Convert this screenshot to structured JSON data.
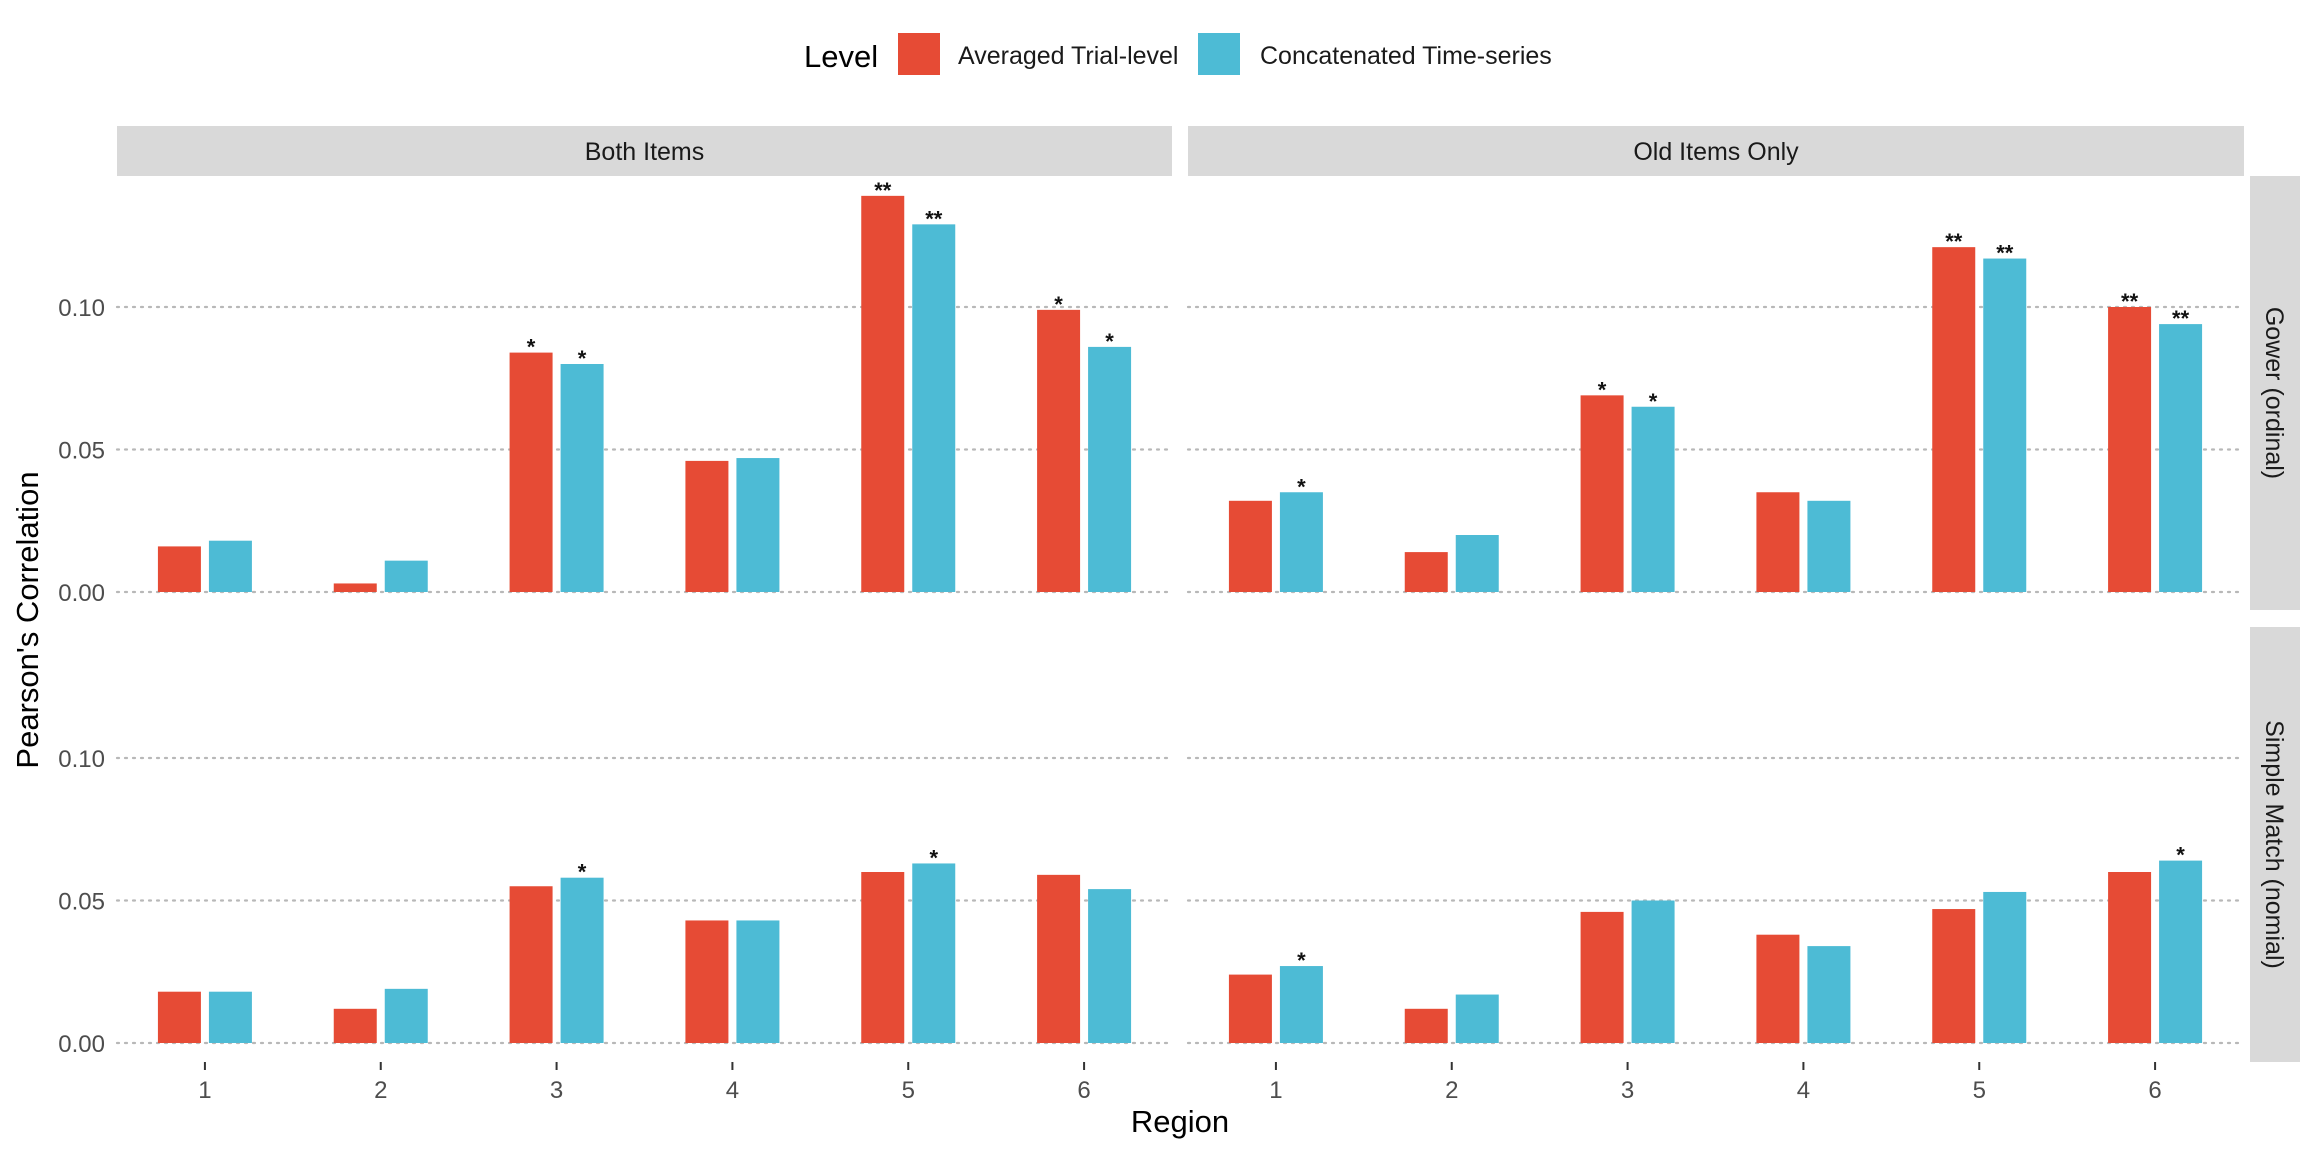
{
  "chart_data": {
    "type": "bar",
    "legend": {
      "title": "Level",
      "placement": "top",
      "entries": [
        "Averaged Trial-level",
        "Concatenated Time-series"
      ]
    },
    "colors": {
      "Averaged Trial-level": "#E64B35",
      "Concatenated Time-series": "#4DBBD5"
    },
    "xlabel": "Region",
    "ylabel": "Pearson's Correlation",
    "categories": [
      "1",
      "2",
      "3",
      "4",
      "5",
      "6"
    ],
    "yticks": [
      0.0,
      0.05,
      0.1
    ],
    "ytick_labels": [
      "0.00",
      "0.05",
      "0.10"
    ],
    "ylim": [
      0,
      0.14
    ],
    "grid": "horizontal dotted",
    "column_facets": [
      "Both Items",
      "Old Items Only"
    ],
    "row_facets": [
      "Gower (ordinal)",
      "Simple Match (nomial)"
    ],
    "panels": [
      {
        "column": "Both Items",
        "row": "Gower (ordinal)",
        "series": [
          {
            "name": "Averaged Trial-level",
            "values": [
              0.016,
              0.003,
              0.084,
              0.046,
              0.139,
              0.099
            ],
            "sig": [
              "",
              "",
              "*",
              "",
              "**",
              "*"
            ]
          },
          {
            "name": "Concatenated Time-series",
            "values": [
              0.018,
              0.011,
              0.08,
              0.047,
              0.129,
              0.086
            ],
            "sig": [
              "",
              "",
              "*",
              "",
              "**",
              "*"
            ]
          }
        ]
      },
      {
        "column": "Old Items Only",
        "row": "Gower (ordinal)",
        "series": [
          {
            "name": "Averaged Trial-level",
            "values": [
              0.032,
              0.014,
              0.069,
              0.035,
              0.121,
              0.1
            ],
            "sig": [
              "",
              "",
              "*",
              "",
              "**",
              "**"
            ]
          },
          {
            "name": "Concatenated Time-series",
            "values": [
              0.035,
              0.02,
              0.065,
              0.032,
              0.117,
              0.094
            ],
            "sig": [
              "*",
              "",
              "*",
              "",
              "**",
              "**"
            ]
          }
        ]
      },
      {
        "column": "Both Items",
        "row": "Simple Match (nomial)",
        "series": [
          {
            "name": "Averaged Trial-level",
            "values": [
              0.018,
              0.012,
              0.055,
              0.043,
              0.06,
              0.059
            ],
            "sig": [
              "",
              "",
              "",
              "",
              "",
              ""
            ]
          },
          {
            "name": "Concatenated Time-series",
            "values": [
              0.018,
              0.019,
              0.058,
              0.043,
              0.063,
              0.054
            ],
            "sig": [
              "",
              "",
              "*",
              "",
              "*",
              ""
            ]
          }
        ]
      },
      {
        "column": "Old Items Only",
        "row": "Simple Match (nomial)",
        "series": [
          {
            "name": "Averaged Trial-level",
            "values": [
              0.024,
              0.012,
              0.046,
              0.038,
              0.047,
              0.06
            ],
            "sig": [
              "",
              "",
              "",
              "",
              "",
              ""
            ]
          },
          {
            "name": "Concatenated Time-series",
            "values": [
              0.027,
              0.017,
              0.05,
              0.034,
              0.053,
              0.064
            ],
            "sig": [
              "*",
              "",
              "",
              "",
              "",
              "*"
            ]
          }
        ]
      }
    ]
  }
}
